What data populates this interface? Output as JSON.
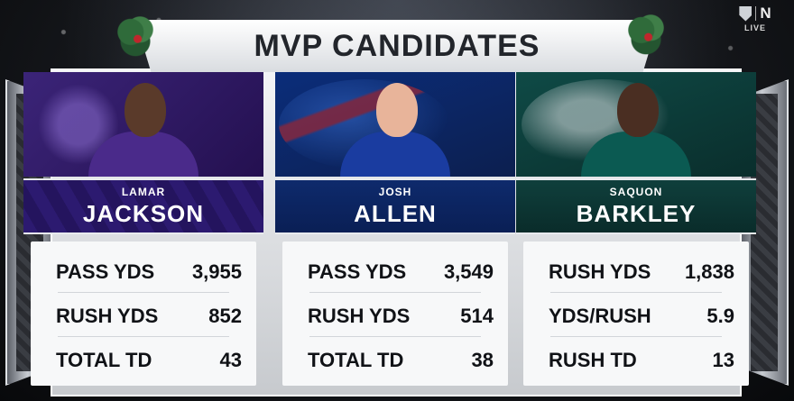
{
  "title": "MVP CANDIDATES",
  "network": {
    "live_label": "LIVE",
    "network_mark": "N"
  },
  "candidates": [
    {
      "first_name": "LAMAR",
      "last_name": "JACKSON",
      "stats": [
        {
          "label": "PASS YDS",
          "value": "3,955"
        },
        {
          "label": "RUSH YDS",
          "value": "852"
        },
        {
          "label": "TOTAL TD",
          "value": "43"
        }
      ]
    },
    {
      "first_name": "JOSH",
      "last_name": "ALLEN",
      "stats": [
        {
          "label": "PASS YDS",
          "value": "3,549"
        },
        {
          "label": "RUSH YDS",
          "value": "514"
        },
        {
          "label": "TOTAL TD",
          "value": "38"
        }
      ]
    },
    {
      "first_name": "SAQUON",
      "last_name": "BARKLEY",
      "stats": [
        {
          "label": "RUSH YDS",
          "value": "1,838"
        },
        {
          "label": "YDS/RUSH",
          "value": "5.9"
        },
        {
          "label": "RUSH TD",
          "value": "13"
        }
      ]
    }
  ],
  "colors": {
    "ravens_purple": "#2c1a70",
    "bills_blue": "#0e2a6c",
    "eagles_green": "#0f3f3c"
  },
  "icons": [
    "nfl-shield-icon",
    "network-logo-icon",
    "holly-wreath-icon"
  ]
}
